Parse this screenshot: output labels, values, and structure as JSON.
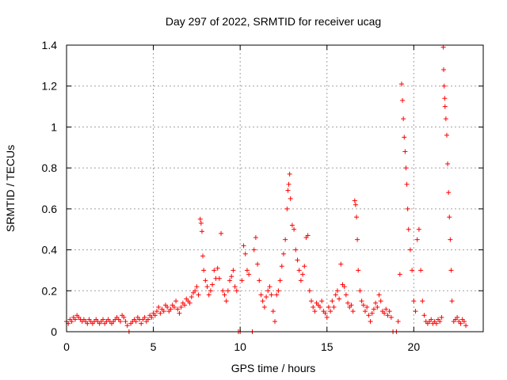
{
  "chart_data": {
    "type": "scatter",
    "title": "Day 297 of 2022, SRMTID for receiver ucag",
    "xlabel": "GPS time / hours",
    "ylabel": "SRMTID / TECUs",
    "xlim": [
      0,
      24
    ],
    "ylim": [
      0,
      1.4
    ],
    "x_ticks": [
      0,
      5,
      10,
      15,
      20
    ],
    "x_tick_labels": [
      "0",
      "5",
      "10",
      "15",
      "20"
    ],
    "y_ticks": [
      0,
      0.2,
      0.4,
      0.6,
      0.8,
      1.0,
      1.2,
      1.4
    ],
    "y_tick_labels": [
      "0",
      "0.2",
      "0.4",
      "0.6",
      "0.8",
      "1",
      "1.2",
      "1.4"
    ],
    "grid": true,
    "marker": "+",
    "color": "#ff0000",
    "series": [
      {
        "name": "SRMTID",
        "points": [
          [
            0.0,
            0.05
          ],
          [
            0.1,
            0.04
          ],
          [
            0.2,
            0.06
          ],
          [
            0.3,
            0.05
          ],
          [
            0.4,
            0.07
          ],
          [
            0.5,
            0.06
          ],
          [
            0.6,
            0.08
          ],
          [
            0.7,
            0.07
          ],
          [
            0.8,
            0.06
          ],
          [
            0.9,
            0.05
          ],
          [
            1.0,
            0.06
          ],
          [
            1.1,
            0.05
          ],
          [
            1.2,
            0.04
          ],
          [
            1.3,
            0.06
          ],
          [
            1.4,
            0.05
          ],
          [
            1.5,
            0.04
          ],
          [
            1.6,
            0.05
          ],
          [
            1.7,
            0.06
          ],
          [
            1.8,
            0.05
          ],
          [
            1.9,
            0.04
          ],
          [
            2.0,
            0.05
          ],
          [
            2.1,
            0.06
          ],
          [
            2.2,
            0.04
          ],
          [
            2.3,
            0.05
          ],
          [
            2.4,
            0.06
          ],
          [
            2.5,
            0.05
          ],
          [
            2.6,
            0.04
          ],
          [
            2.7,
            0.05
          ],
          [
            2.8,
            0.06
          ],
          [
            2.9,
            0.07
          ],
          [
            3.0,
            0.06
          ],
          [
            3.1,
            0.05
          ],
          [
            3.2,
            0.08
          ],
          [
            3.3,
            0.07
          ],
          [
            3.4,
            0.05
          ],
          [
            3.5,
            0.03
          ],
          [
            3.6,
            0.0
          ],
          [
            3.7,
            0.04
          ],
          [
            3.8,
            0.05
          ],
          [
            3.9,
            0.06
          ],
          [
            4.0,
            0.05
          ],
          [
            4.1,
            0.07
          ],
          [
            4.2,
            0.06
          ],
          [
            4.3,
            0.04
          ],
          [
            4.4,
            0.06
          ],
          [
            4.5,
            0.07
          ],
          [
            4.6,
            0.05
          ],
          [
            4.7,
            0.06
          ],
          [
            4.8,
            0.08
          ],
          [
            4.9,
            0.07
          ],
          [
            5.0,
            0.09
          ],
          [
            5.1,
            0.08
          ],
          [
            5.2,
            0.1
          ],
          [
            5.3,
            0.12
          ],
          [
            5.4,
            0.09
          ],
          [
            5.5,
            0.11
          ],
          [
            5.6,
            0.1
          ],
          [
            5.7,
            0.13
          ],
          [
            5.8,
            0.12
          ],
          [
            5.9,
            0.1
          ],
          [
            6.0,
            0.11
          ],
          [
            6.1,
            0.13
          ],
          [
            6.2,
            0.12
          ],
          [
            6.3,
            0.15
          ],
          [
            6.4,
            0.11
          ],
          [
            6.5,
            0.09
          ],
          [
            6.6,
            0.12
          ],
          [
            6.7,
            0.14
          ],
          [
            6.8,
            0.13
          ],
          [
            6.9,
            0.16
          ],
          [
            7.0,
            0.15
          ],
          [
            7.1,
            0.14
          ],
          [
            7.2,
            0.17
          ],
          [
            7.3,
            0.19
          ],
          [
            7.4,
            0.2
          ],
          [
            7.5,
            0.22
          ],
          [
            7.6,
            0.18
          ],
          [
            7.7,
            0.55
          ],
          [
            7.75,
            0.53
          ],
          [
            7.8,
            0.49
          ],
          [
            7.85,
            0.37
          ],
          [
            7.9,
            0.3
          ],
          [
            8.0,
            0.25
          ],
          [
            8.1,
            0.22
          ],
          [
            8.2,
            0.18
          ],
          [
            8.3,
            0.2
          ],
          [
            8.4,
            0.23
          ],
          [
            8.5,
            0.3
          ],
          [
            8.6,
            0.26
          ],
          [
            8.7,
            0.31
          ],
          [
            8.8,
            0.26
          ],
          [
            8.9,
            0.48
          ],
          [
            9.0,
            0.2
          ],
          [
            9.1,
            0.18
          ],
          [
            9.2,
            0.15
          ],
          [
            9.3,
            0.2
          ],
          [
            9.4,
            0.25
          ],
          [
            9.5,
            0.27
          ],
          [
            9.6,
            0.3
          ],
          [
            9.7,
            0.22
          ],
          [
            9.8,
            0.2
          ],
          [
            9.9,
            0.0
          ],
          [
            10.0,
            0.0
          ],
          [
            10.1,
            0.25
          ],
          [
            10.2,
            0.42
          ],
          [
            10.3,
            0.38
          ],
          [
            10.4,
            0.3
          ],
          [
            10.5,
            0.28
          ],
          [
            10.7,
            0.0
          ],
          [
            10.8,
            0.4
          ],
          [
            10.9,
            0.46
          ],
          [
            11.0,
            0.33
          ],
          [
            11.1,
            0.25
          ],
          [
            11.2,
            0.18
          ],
          [
            11.3,
            0.15
          ],
          [
            11.4,
            0.12
          ],
          [
            11.5,
            0.17
          ],
          [
            11.6,
            0.2
          ],
          [
            11.7,
            0.22
          ],
          [
            11.8,
            0.18
          ],
          [
            11.9,
            0.1
          ],
          [
            12.0,
            0.05
          ],
          [
            12.1,
            0.18
          ],
          [
            12.2,
            0.2
          ],
          [
            12.3,
            0.25
          ],
          [
            12.4,
            0.32
          ],
          [
            12.5,
            0.38
          ],
          [
            12.6,
            0.45
          ],
          [
            12.7,
            0.6
          ],
          [
            12.75,
            0.69
          ],
          [
            12.8,
            0.72
          ],
          [
            12.85,
            0.77
          ],
          [
            12.9,
            0.65
          ],
          [
            13.0,
            0.52
          ],
          [
            13.1,
            0.5
          ],
          [
            13.2,
            0.4
          ],
          [
            13.3,
            0.35
          ],
          [
            13.4,
            0.3
          ],
          [
            13.5,
            0.25
          ],
          [
            13.6,
            0.28
          ],
          [
            13.7,
            0.32
          ],
          [
            13.8,
            0.46
          ],
          [
            13.9,
            0.47
          ],
          [
            14.0,
            0.2
          ],
          [
            14.1,
            0.15
          ],
          [
            14.2,
            0.12
          ],
          [
            14.3,
            0.1
          ],
          [
            14.4,
            0.14
          ],
          [
            14.5,
            0.13
          ],
          [
            14.6,
            0.12
          ],
          [
            14.7,
            0.15
          ],
          [
            14.8,
            0.1
          ],
          [
            14.9,
            0.09
          ],
          [
            15.0,
            0.07
          ],
          [
            15.1,
            0.12
          ],
          [
            15.2,
            0.1
          ],
          [
            15.3,
            0.15
          ],
          [
            15.4,
            0.12
          ],
          [
            15.5,
            0.18
          ],
          [
            15.6,
            0.2
          ],
          [
            15.7,
            0.16
          ],
          [
            15.8,
            0.33
          ],
          [
            15.9,
            0.23
          ],
          [
            16.0,
            0.22
          ],
          [
            16.1,
            0.18
          ],
          [
            16.2,
            0.14
          ],
          [
            16.3,
            0.12
          ],
          [
            16.4,
            0.13
          ],
          [
            16.5,
            0.1
          ],
          [
            16.6,
            0.64
          ],
          [
            16.65,
            0.62
          ],
          [
            16.7,
            0.56
          ],
          [
            16.75,
            0.45
          ],
          [
            16.8,
            0.3
          ],
          [
            16.9,
            0.2
          ],
          [
            17.0,
            0.15
          ],
          [
            17.1,
            0.13
          ],
          [
            17.2,
            0.1
          ],
          [
            17.3,
            0.12
          ],
          [
            17.4,
            0.08
          ],
          [
            17.5,
            0.05
          ],
          [
            17.6,
            0.09
          ],
          [
            17.7,
            0.11
          ],
          [
            17.8,
            0.14
          ],
          [
            17.9,
            0.12
          ],
          [
            18.0,
            0.18
          ],
          [
            18.1,
            0.15
          ],
          [
            18.2,
            0.1
          ],
          [
            18.3,
            0.09
          ],
          [
            18.4,
            0.11
          ],
          [
            18.5,
            0.08
          ],
          [
            18.6,
            0.1
          ],
          [
            18.7,
            0.07
          ],
          [
            18.8,
            0.0
          ],
          [
            19.0,
            0.0
          ],
          [
            19.1,
            0.05
          ],
          [
            19.2,
            0.28
          ],
          [
            19.3,
            1.21
          ],
          [
            19.35,
            1.13
          ],
          [
            19.4,
            1.04
          ],
          [
            19.45,
            0.95
          ],
          [
            19.5,
            0.88
          ],
          [
            19.55,
            0.8
          ],
          [
            19.6,
            0.72
          ],
          [
            19.65,
            0.6
          ],
          [
            19.7,
            0.5
          ],
          [
            19.8,
            0.4
          ],
          [
            19.9,
            0.3
          ],
          [
            20.0,
            0.15
          ],
          [
            20.1,
            0.1
          ],
          [
            20.2,
            0.45
          ],
          [
            20.3,
            0.5
          ],
          [
            20.4,
            0.3
          ],
          [
            20.5,
            0.15
          ],
          [
            20.6,
            0.08
          ],
          [
            20.7,
            0.05
          ],
          [
            20.8,
            0.04
          ],
          [
            20.9,
            0.05
          ],
          [
            21.0,
            0.06
          ],
          [
            21.1,
            0.04
          ],
          [
            21.2,
            0.05
          ],
          [
            21.3,
            0.04
          ],
          [
            21.4,
            0.06
          ],
          [
            21.5,
            0.05
          ],
          [
            21.6,
            0.07
          ],
          [
            21.7,
            1.39
          ],
          [
            21.72,
            1.28
          ],
          [
            21.75,
            1.2
          ],
          [
            21.78,
            1.14
          ],
          [
            21.8,
            1.1
          ],
          [
            21.85,
            1.04
          ],
          [
            21.9,
            0.96
          ],
          [
            21.95,
            0.82
          ],
          [
            22.0,
            0.68
          ],
          [
            22.05,
            0.56
          ],
          [
            22.1,
            0.45
          ],
          [
            22.15,
            0.3
          ],
          [
            22.2,
            0.15
          ],
          [
            22.3,
            0.05
          ],
          [
            22.4,
            0.06
          ],
          [
            22.5,
            0.07
          ],
          [
            22.6,
            0.05
          ],
          [
            22.7,
            0.04
          ],
          [
            22.8,
            0.06
          ],
          [
            22.9,
            0.05
          ],
          [
            23.0,
            0.03
          ]
        ]
      }
    ]
  }
}
